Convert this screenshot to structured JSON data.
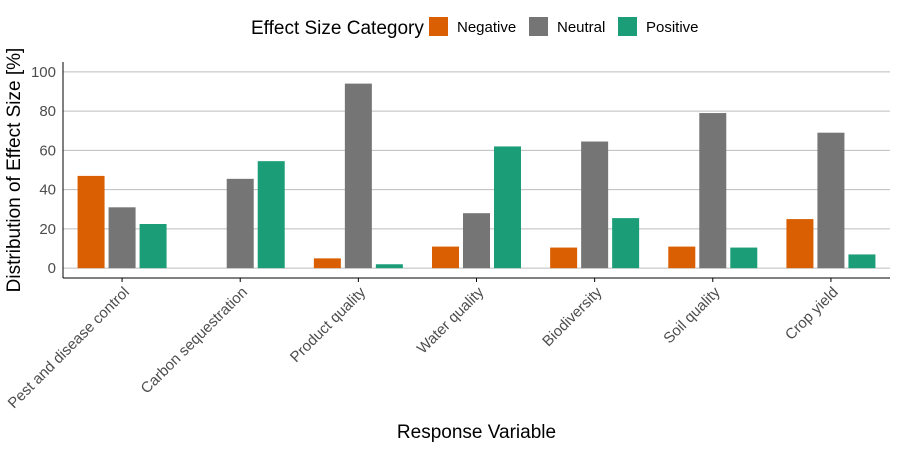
{
  "chart_data": {
    "type": "bar",
    "xlabel": "Response Variable",
    "ylabel": "Distribution of Effect Size [%]",
    "ylim": [
      -5,
      105
    ],
    "yticks": [
      0,
      20,
      40,
      60,
      80,
      100
    ],
    "grid": "horizontal",
    "legend": {
      "title": "Effect Size Category",
      "position": "top"
    },
    "categories": [
      "Pest and disease control",
      "Carbon sequestration",
      "Product quality",
      "Water quality",
      "Biodiversity",
      "Soil quality",
      "Crop yield"
    ],
    "series": [
      {
        "name": "Negative",
        "color": "#d95f02",
        "values": [
          47,
          0,
          5,
          11,
          10.5,
          11,
          25
        ]
      },
      {
        "name": "Neutral",
        "color": "#757575",
        "values": [
          31,
          45.5,
          94,
          28,
          64.5,
          79,
          69
        ]
      },
      {
        "name": "Positive",
        "color": "#1b9e77",
        "values": [
          22.5,
          54.5,
          2,
          62,
          25.5,
          10.5,
          7
        ]
      }
    ]
  }
}
